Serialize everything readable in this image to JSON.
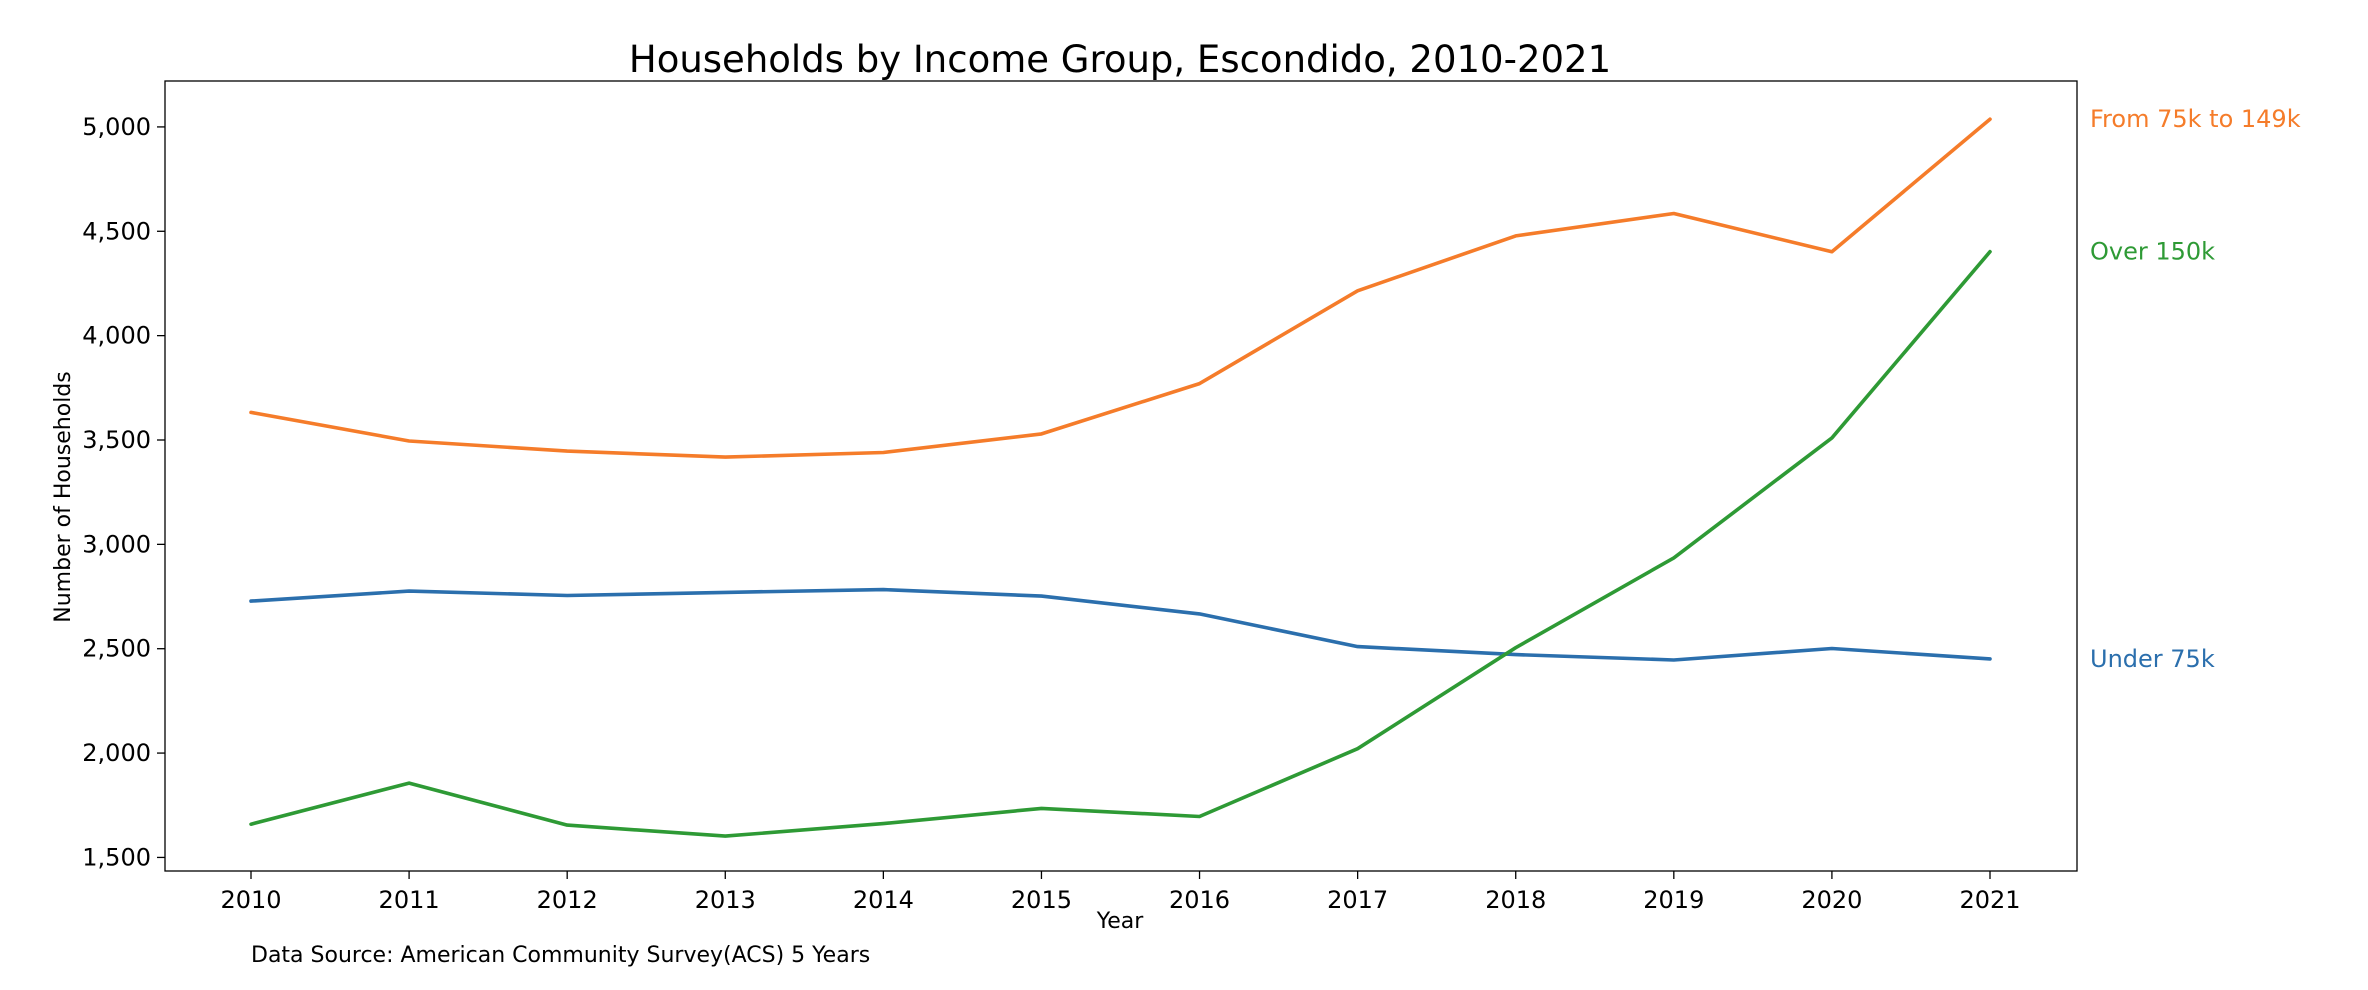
{
  "chart_data": {
    "type": "line",
    "title": "Households by Income Group, Escondido, 2010-2021",
    "xlabel": "Year",
    "ylabel": "Number of Households",
    "x": [
      2010,
      2011,
      2012,
      2013,
      2014,
      2015,
      2016,
      2017,
      2018,
      2019,
      2020,
      2021
    ],
    "x_tick_labels": [
      "2010",
      "2011",
      "2012",
      "2013",
      "2014",
      "2015",
      "2016",
      "2017",
      "2018",
      "2019",
      "2020",
      "2021"
    ],
    "y_ticks": [
      1500,
      2000,
      2500,
      3000,
      3500,
      4000,
      4500,
      5000
    ],
    "y_tick_labels": [
      "1,500",
      "2,000",
      "2,500",
      "3,000",
      "3,500",
      "4,000",
      "4,500",
      "5,000"
    ],
    "ylim": [
      1435,
      5220
    ],
    "grid": false,
    "legend": "none",
    "series": [
      {
        "name": "Under 75k",
        "color": "#2b6fad",
        "values": [
          2728,
          2776,
          2755,
          2770,
          2783,
          2752,
          2667,
          2510,
          2472,
          2446,
          2501,
          2451
        ]
      },
      {
        "name": "From 75k to 149k",
        "color": "#f57c2a",
        "values": [
          3632,
          3495,
          3447,
          3418,
          3440,
          3529,
          3770,
          4215,
          4478,
          4585,
          4402,
          5037
        ]
      },
      {
        "name": "Over 150k",
        "color": "#2e9a35",
        "values": [
          1659,
          1856,
          1655,
          1602,
          1662,
          1735,
          1696,
          2021,
          2505,
          2935,
          3510,
          4402
        ]
      }
    ],
    "source_note": "Data Source: American Community Survey(ACS) 5 Years"
  }
}
